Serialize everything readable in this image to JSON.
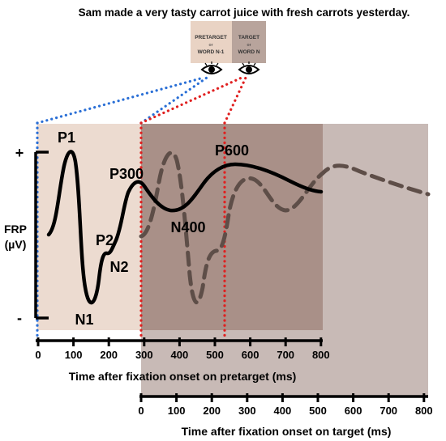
{
  "sentence": "Sam made a very tasty carrot juice with fresh carrots yesterday.",
  "boxes": {
    "pretarget": [
      "PRETARGET",
      "or",
      "WORD N-1"
    ],
    "target": [
      "TARGET",
      "or",
      "WORD N"
    ]
  },
  "y_axis": {
    "label_line1": "FRP",
    "label_line2": "(µV)",
    "plus": "+",
    "minus": "-"
  },
  "components": {
    "P1": "P1",
    "N1": "N1",
    "P2": "P2",
    "N2": "N2",
    "P300": "P300",
    "N400": "N400",
    "P600": "P600"
  },
  "x_axis_pretarget": {
    "label": "Time after fixation onset on pretarget (ms)",
    "ticks": [
      "0",
      "100",
      "200",
      "300",
      "400",
      "500",
      "600",
      "700",
      "800"
    ]
  },
  "x_axis_target": {
    "label": "Time after fixation onset on target (ms)",
    "ticks": [
      "0",
      "100",
      "200",
      "300",
      "400",
      "500",
      "600",
      "700",
      "800"
    ]
  },
  "colors": {
    "pretarget_region": "#ecdbd0",
    "target_region": "#a99088",
    "outer_region": "#c8bab6",
    "solid_wave": "#000000",
    "dashed_wave": "#5e4e48",
    "blue_dots": "#2a6fd6",
    "red_dots": "#e02020"
  }
}
